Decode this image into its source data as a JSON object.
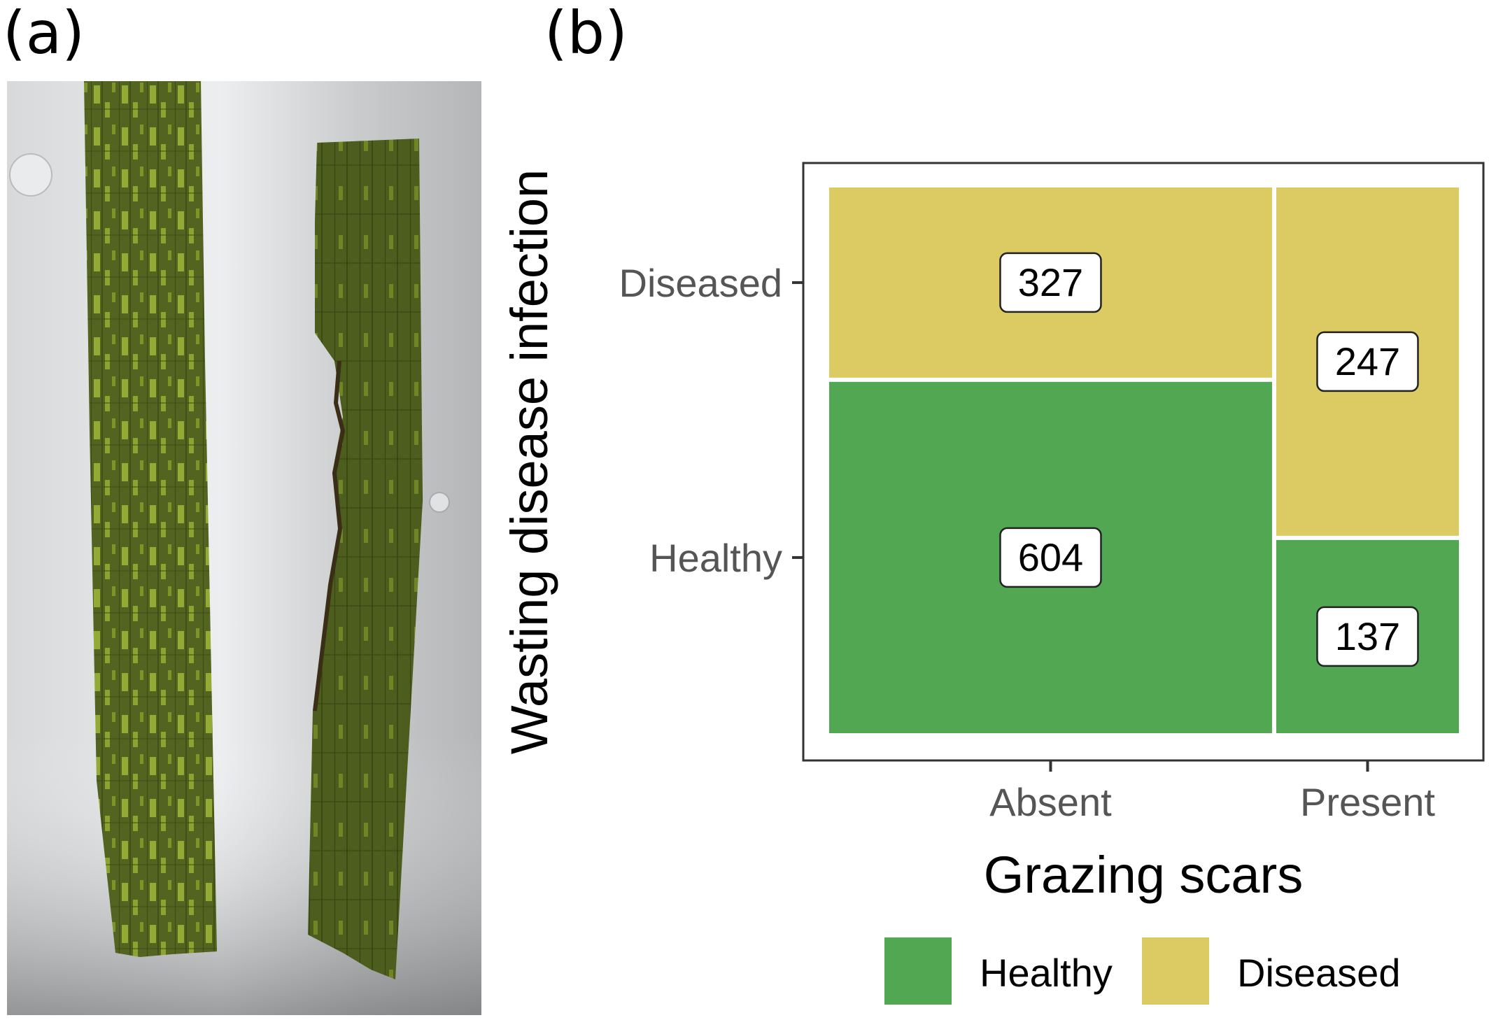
{
  "panels": {
    "a_label": "(a)",
    "b_label": "(b)"
  },
  "photo": {
    "description_icon": "seagrass-leaf-photo-icon",
    "background_color": "#c9cbcc",
    "leaf_color": "#4f5f1c",
    "lesion_color": "#8ea42e"
  },
  "colors": {
    "healthy": "#52a752",
    "diseased": "#dccb62",
    "frame": "#333333",
    "label_text": "#555555"
  },
  "chart_data": {
    "type": "mosaic",
    "xlabel": "Grazing scars",
    "ylabel": "Wasting disease infection",
    "x_categories": [
      "Absent",
      "Present"
    ],
    "y_categories": [
      "Healthy",
      "Diseased"
    ],
    "cells": [
      {
        "x": "Absent",
        "y": "Diseased",
        "count": 327,
        "label": "327"
      },
      {
        "x": "Absent",
        "y": "Healthy",
        "count": 604,
        "label": "604"
      },
      {
        "x": "Present",
        "y": "Diseased",
        "count": 247,
        "label": "247"
      },
      {
        "x": "Present",
        "y": "Healthy",
        "count": 137,
        "label": "137"
      }
    ],
    "y_tick_labels": {
      "Diseased": "Diseased",
      "Healthy": "Healthy"
    },
    "legend": {
      "placement": "bottom",
      "items": [
        {
          "key": "Healthy",
          "label": "Healthy"
        },
        {
          "key": "Diseased",
          "label": "Diseased"
        }
      ]
    },
    "grid": false
  }
}
